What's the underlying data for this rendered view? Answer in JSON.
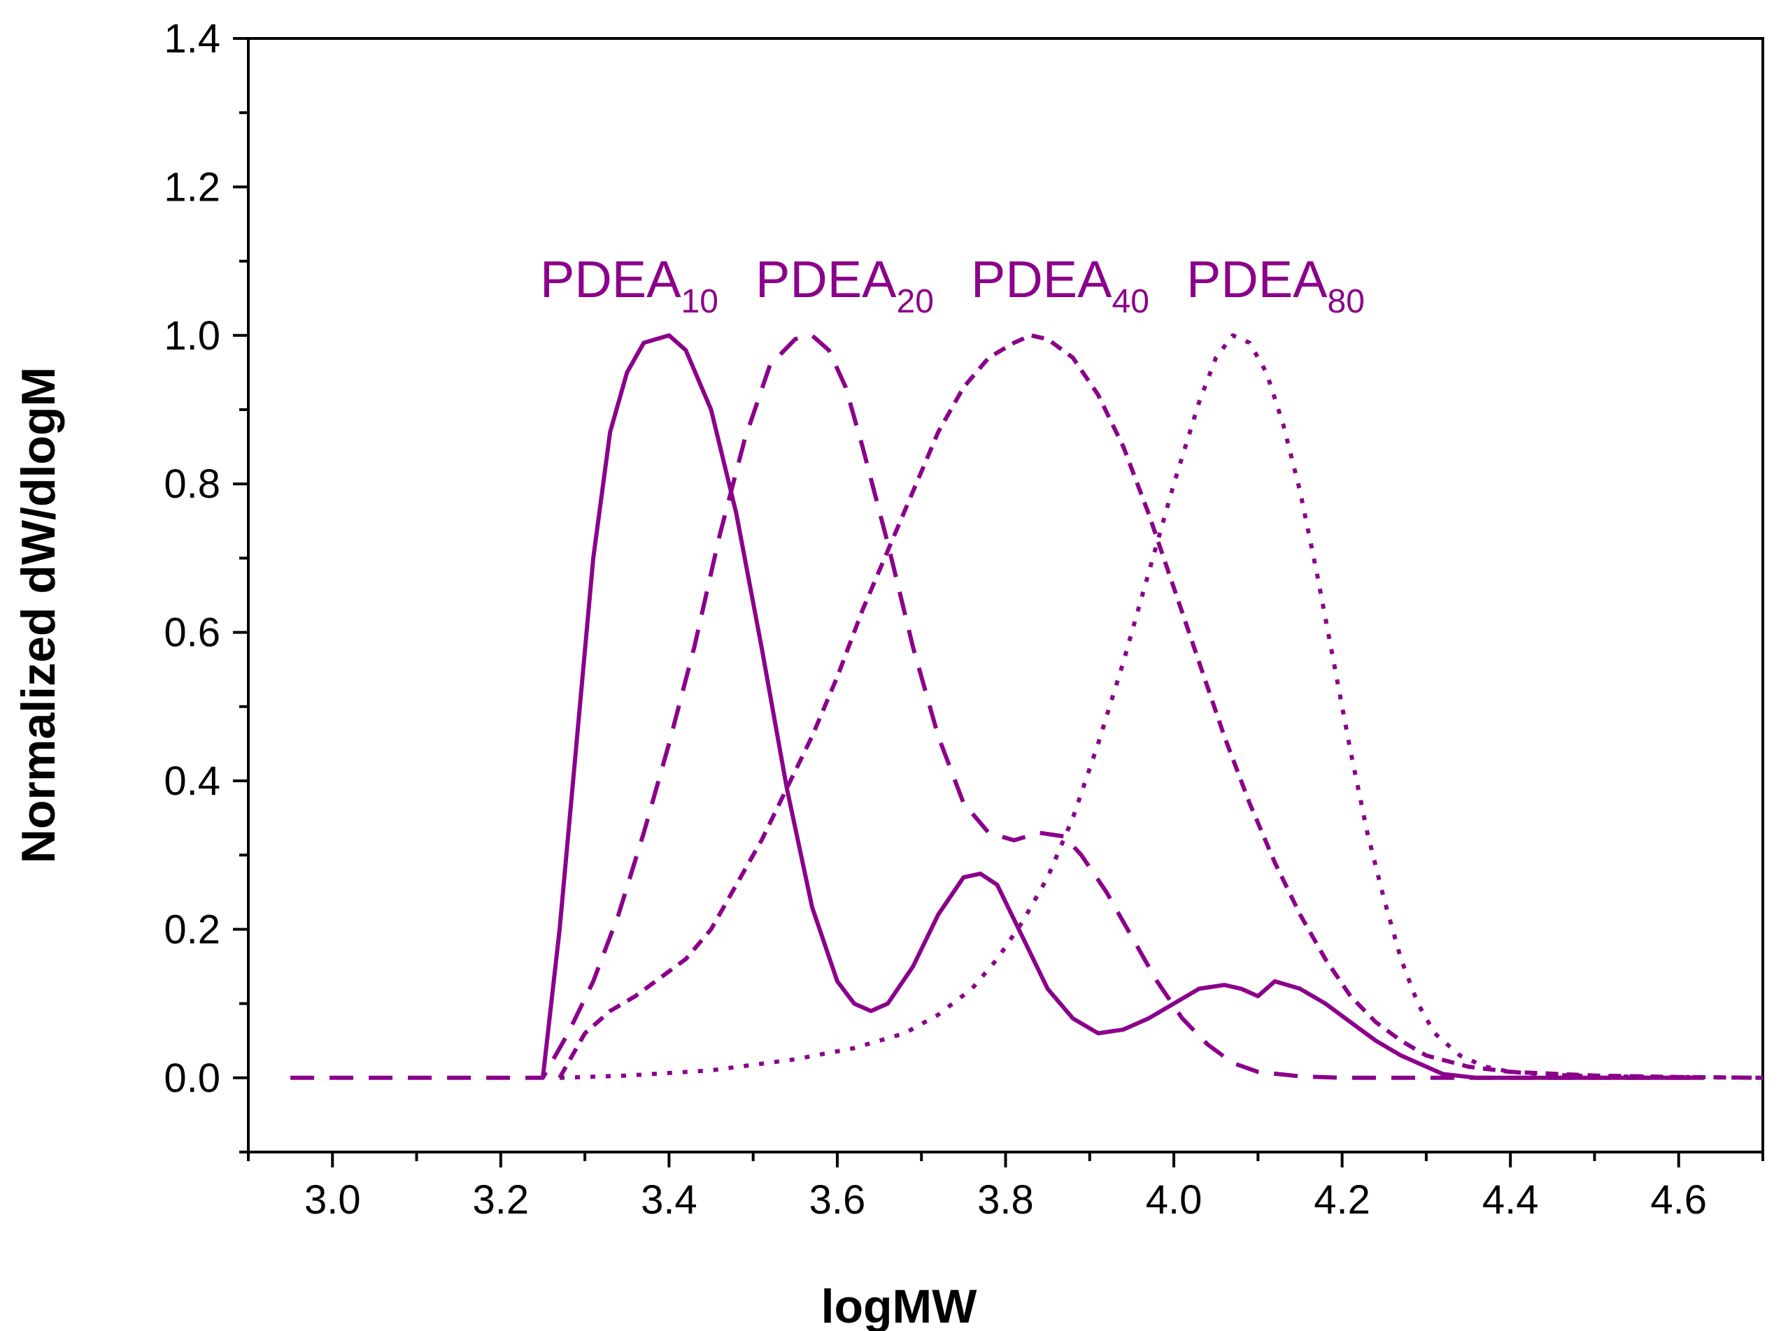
{
  "chart_data": {
    "type": "line",
    "title": "",
    "xlabel": "logMW",
    "ylabel": "Normalized dW/dlogM",
    "xlim": [
      2.9,
      4.7
    ],
    "ylim": [
      -0.1,
      1.4
    ],
    "xticks": [
      3.0,
      3.2,
      3.4,
      3.6,
      3.8,
      4.0,
      4.2,
      4.4,
      4.6
    ],
    "xtick_labels": [
      "3.0",
      "3.2",
      "3.4",
      "3.6",
      "3.8",
      "4.0",
      "4.2",
      "4.4",
      "4.6"
    ],
    "yticks": [
      0.0,
      0.2,
      0.4,
      0.6,
      0.8,
      1.0,
      1.2,
      1.4
    ],
    "ytick_labels": [
      "0.0",
      "0.2",
      "0.4",
      "0.6",
      "0.8",
      "1.0",
      "1.2",
      "1.4"
    ],
    "grid": false,
    "line_color": "#8B008B",
    "series": [
      {
        "name": "PDEA10",
        "label_main": "PDEA",
        "label_sub": "10",
        "style": "solid",
        "x": [
          3.25,
          3.27,
          3.29,
          3.31,
          3.33,
          3.35,
          3.37,
          3.4,
          3.42,
          3.45,
          3.48,
          3.51,
          3.54,
          3.57,
          3.6,
          3.62,
          3.64,
          3.66,
          3.69,
          3.72,
          3.75,
          3.77,
          3.79,
          3.82,
          3.85,
          3.88,
          3.91,
          3.94,
          3.97,
          4.0,
          4.03,
          4.06,
          4.08,
          4.1,
          4.12,
          4.15,
          4.18,
          4.21,
          4.24,
          4.27,
          4.3,
          4.32,
          4.36,
          4.5,
          4.63
        ],
        "y": [
          0.0,
          0.2,
          0.45,
          0.7,
          0.87,
          0.95,
          0.99,
          1.0,
          0.98,
          0.9,
          0.76,
          0.58,
          0.39,
          0.23,
          0.13,
          0.1,
          0.09,
          0.1,
          0.15,
          0.22,
          0.27,
          0.275,
          0.26,
          0.19,
          0.12,
          0.08,
          0.06,
          0.065,
          0.08,
          0.1,
          0.12,
          0.125,
          0.12,
          0.11,
          0.13,
          0.12,
          0.1,
          0.075,
          0.05,
          0.03,
          0.015,
          0.005,
          0.0,
          0.0,
          0.0
        ]
      },
      {
        "name": "PDEA20",
        "label_main": "PDEA",
        "label_sub": "20",
        "style": "dashed",
        "x": [
          2.95,
          3.05,
          3.15,
          3.25,
          3.26,
          3.28,
          3.31,
          3.34,
          3.37,
          3.4,
          3.43,
          3.46,
          3.49,
          3.52,
          3.55,
          3.57,
          3.59,
          3.61,
          3.63,
          3.66,
          3.69,
          3.72,
          3.75,
          3.78,
          3.81,
          3.84,
          3.87,
          3.89,
          3.92,
          3.95,
          3.98,
          4.01,
          4.04,
          4.07,
          4.1,
          4.15,
          4.2,
          4.3,
          4.45,
          4.63
        ],
        "y": [
          0.0,
          0.0,
          0.0,
          0.0,
          0.02,
          0.06,
          0.13,
          0.22,
          0.33,
          0.45,
          0.58,
          0.73,
          0.86,
          0.96,
          0.995,
          1.0,
          0.98,
          0.93,
          0.85,
          0.72,
          0.58,
          0.46,
          0.37,
          0.33,
          0.32,
          0.33,
          0.325,
          0.3,
          0.25,
          0.19,
          0.13,
          0.08,
          0.045,
          0.02,
          0.008,
          0.002,
          0.0,
          0.0,
          0.0,
          0.0
        ]
      },
      {
        "name": "PDEA40",
        "label_main": "PDEA",
        "label_sub": "40",
        "style": "short-dash",
        "x": [
          3.27,
          3.3,
          3.33,
          3.36,
          3.39,
          3.42,
          3.45,
          3.48,
          3.51,
          3.54,
          3.57,
          3.6,
          3.63,
          3.66,
          3.69,
          3.72,
          3.75,
          3.78,
          3.81,
          3.83,
          3.85,
          3.88,
          3.91,
          3.94,
          3.97,
          4.0,
          4.03,
          4.06,
          4.09,
          4.12,
          4.15,
          4.18,
          4.21,
          4.24,
          4.27,
          4.3,
          4.35,
          4.4,
          4.5,
          4.6,
          4.7
        ],
        "y": [
          0.0,
          0.06,
          0.09,
          0.11,
          0.135,
          0.16,
          0.2,
          0.26,
          0.32,
          0.39,
          0.46,
          0.54,
          0.63,
          0.71,
          0.79,
          0.87,
          0.93,
          0.97,
          0.99,
          1.0,
          0.995,
          0.97,
          0.92,
          0.85,
          0.76,
          0.66,
          0.56,
          0.46,
          0.37,
          0.29,
          0.22,
          0.16,
          0.11,
          0.075,
          0.05,
          0.03,
          0.015,
          0.008,
          0.003,
          0.001,
          0.0
        ]
      },
      {
        "name": "PDEA80",
        "label_main": "PDEA",
        "label_sub": "80",
        "style": "dotted",
        "x": [
          3.27,
          3.35,
          3.45,
          3.55,
          3.62,
          3.68,
          3.72,
          3.76,
          3.79,
          3.82,
          3.85,
          3.88,
          3.91,
          3.94,
          3.97,
          4.0,
          4.03,
          4.05,
          4.07,
          4.09,
          4.11,
          4.13,
          4.15,
          4.17,
          4.19,
          4.21,
          4.23,
          4.25,
          4.27,
          4.29,
          4.31,
          4.34,
          4.37,
          4.4,
          4.45,
          4.5,
          4.6,
          4.7
        ],
        "y": [
          0.0,
          0.003,
          0.01,
          0.025,
          0.04,
          0.06,
          0.085,
          0.12,
          0.16,
          0.21,
          0.27,
          0.35,
          0.45,
          0.56,
          0.68,
          0.8,
          0.91,
          0.97,
          1.0,
          0.99,
          0.95,
          0.88,
          0.79,
          0.68,
          0.56,
          0.44,
          0.33,
          0.24,
          0.16,
          0.1,
          0.06,
          0.03,
          0.015,
          0.008,
          0.004,
          0.002,
          0.001,
          0.0
        ]
      }
    ]
  }
}
